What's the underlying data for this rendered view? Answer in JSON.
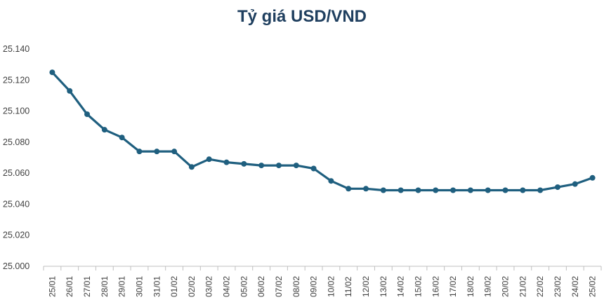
{
  "chart_data": {
    "type": "line",
    "title": "Tỷ giá USD/VND",
    "xlabel": "",
    "ylabel": "",
    "x": [
      "25/01",
      "26/01",
      "27/01",
      "28/01",
      "29/01",
      "30/01",
      "31/01",
      "01/02",
      "02/02",
      "03/02",
      "04/02",
      "05/02",
      "06/02",
      "07/02",
      "08/02",
      "09/02",
      "10/02",
      "11/02",
      "12/02",
      "13/02",
      "14/02",
      "15/02",
      "16/02",
      "17/02",
      "18/02",
      "19/02",
      "20/02",
      "21/02",
      "22/02",
      "23/02",
      "24/02",
      "25/02"
    ],
    "y": [
      25125,
      25113,
      25098,
      25088,
      25083,
      25074,
      25074,
      25074,
      25064,
      25069,
      25067,
      25066,
      25065,
      25065,
      25065,
      25063,
      25055,
      25050,
      25050,
      25049,
      25049,
      25049,
      25049,
      25049,
      25049,
      25049,
      25049,
      25049,
      25049,
      25051,
      25053,
      25057
    ],
    "ylim": [
      25000,
      25140
    ],
    "yticks": [
      25000,
      25020,
      25040,
      25060,
      25080,
      25100,
      25120,
      25140
    ],
    "ytick_labels": [
      "25.000",
      "25.020",
      "25.040",
      "25.060",
      "25.080",
      "25.100",
      "25.120",
      "25.140"
    ],
    "grid": false,
    "legend": "none",
    "colors": {
      "line": "#1f5f7f",
      "title": "#1f3f5f",
      "axis": "#bfbfbf"
    }
  }
}
